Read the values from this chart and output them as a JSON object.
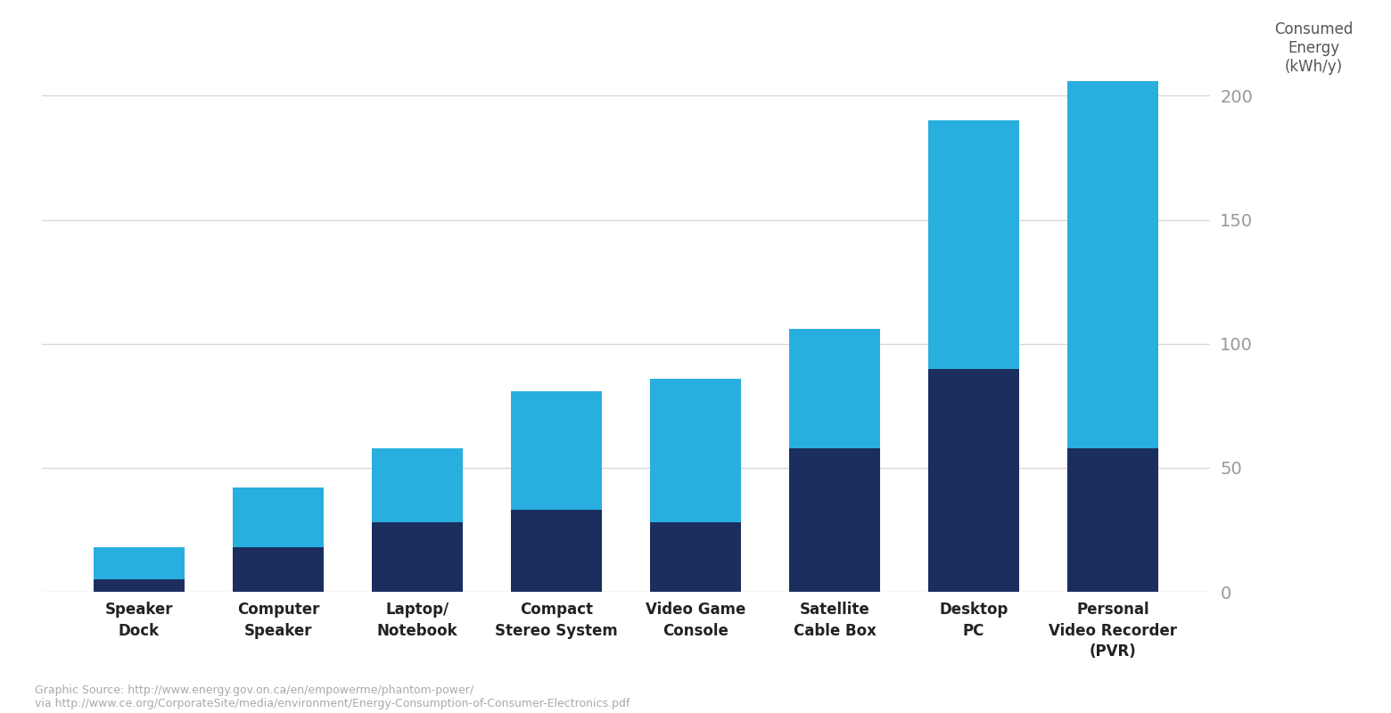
{
  "categories": [
    "Speaker\nDock",
    "Computer\nSpeaker",
    "Laptop/\nNotebook",
    "Compact\nStereo System",
    "Video Game\nConsole",
    "Satellite\nCable Box",
    "Desktop\nPC",
    "Personal\nVideo Recorder\n(PVR)"
  ],
  "dark_values": [
    5,
    18,
    28,
    33,
    28,
    58,
    90,
    58
  ],
  "light_values": [
    13,
    24,
    30,
    48,
    58,
    48,
    100,
    148
  ],
  "dark_color": "#1b2e5e",
  "light_color": "#29aee0",
  "bg_color": "#ffffff",
  "ylabel_line1": "Consumed",
  "ylabel_line2": "Energy",
  "ylabel_line3": "(kWh/y)",
  "ylim": [
    0,
    230
  ],
  "yticks": [
    0,
    50,
    100,
    150,
    200
  ],
  "source_line1": "Graphic Source: http://www.energy.gov.on.ca/en/empowerme/phantom-power/",
  "source_line2": "via http://www.ce.org/CorporateSite/media/environment/Energy-Consumption-of-Consumer-Electronics.pdf",
  "bar_width": 0.65,
  "grid_color": "#d8d8d8",
  "tick_color": "#999999",
  "label_color": "#222222"
}
